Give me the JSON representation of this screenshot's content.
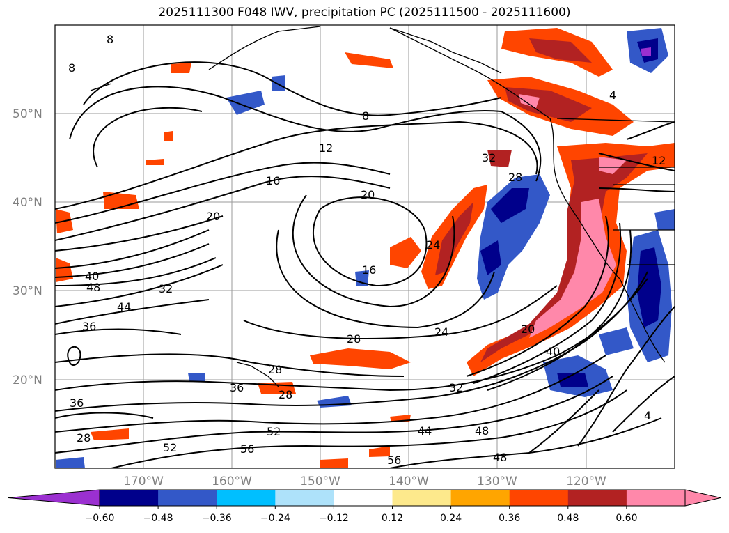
{
  "title": "2025111300 F048 IWV, precipitation PC (2025111500 - 2025111600)",
  "map": {
    "lat_labels": [
      "50°N",
      "40°N",
      "30°N",
      "20°N"
    ],
    "lon_labels": [
      "170°W",
      "160°W",
      "150°W",
      "140°W",
      "130°W",
      "120°W"
    ],
    "contour_labels": [
      "8",
      "8",
      "8",
      "12",
      "16",
      "20",
      "20",
      "24",
      "28",
      "32",
      "40",
      "48",
      "44",
      "32",
      "36",
      "28",
      "24",
      "28",
      "36",
      "36",
      "28",
      "52",
      "52",
      "56",
      "56",
      "44",
      "48",
      "48",
      "32",
      "40",
      "20",
      "16",
      "12",
      "4",
      "4",
      "28"
    ]
  },
  "colorbar": {
    "ticks": [
      "−0.60",
      "−0.48",
      "−0.36",
      "−0.24",
      "−0.12",
      "0.12",
      "0.24",
      "0.36",
      "0.48",
      "0.60"
    ],
    "colors": [
      "#9b30d0",
      "#00008b",
      "#3358c8",
      "#00bfff",
      "#aee2fa",
      "#ffffff",
      "#fde98c",
      "#ffa500",
      "#ff4500",
      "#b22222",
      "#ff88aa",
      "#ff88aa"
    ]
  }
}
